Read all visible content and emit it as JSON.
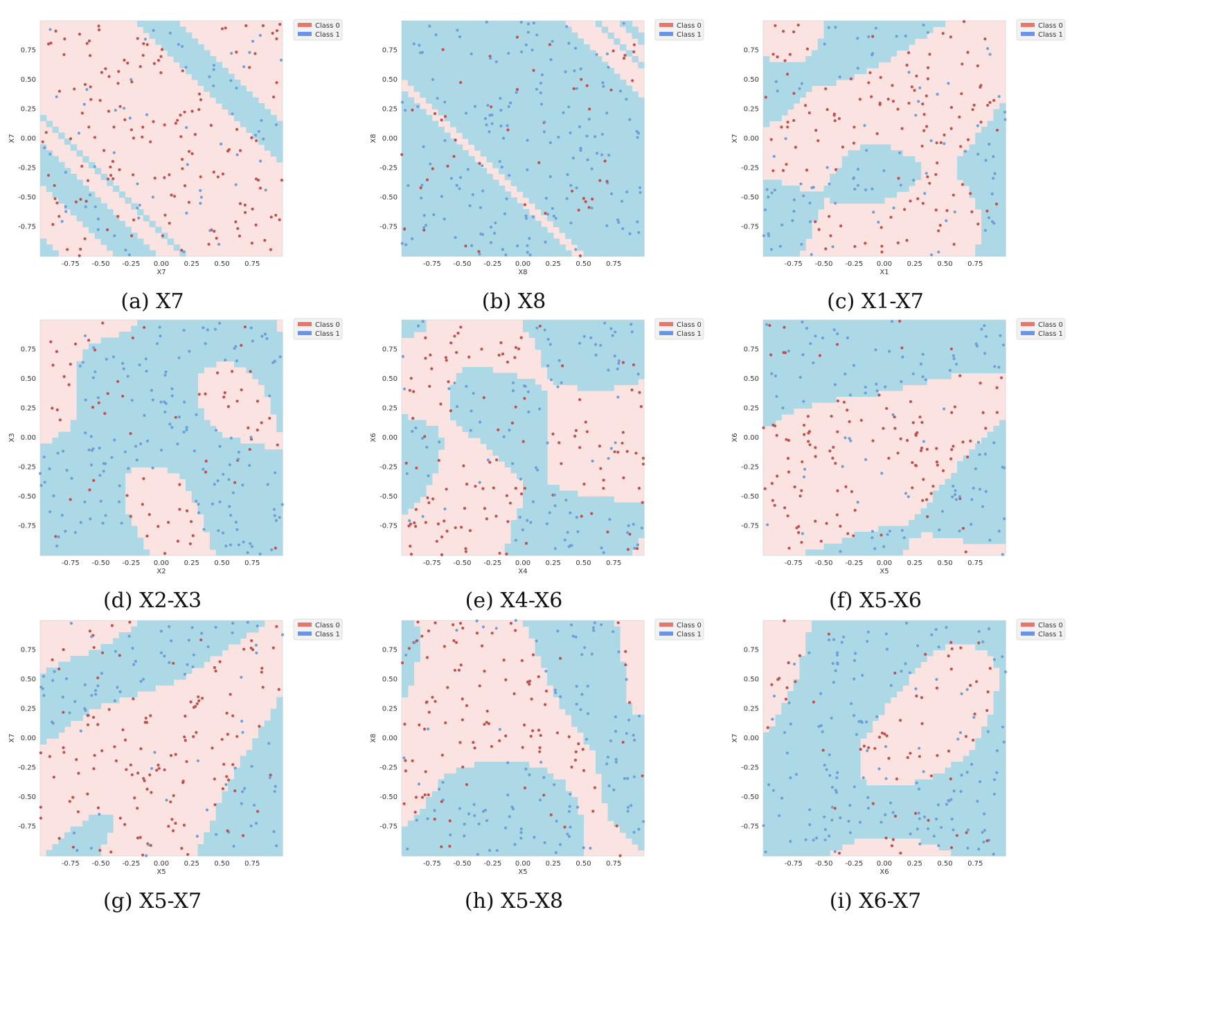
{
  "chart_data": [
    {
      "type": "scatter",
      "panel_id": "a",
      "caption": "(a) X7",
      "xlabel": "X7",
      "ylabel": "X7",
      "xlim": [
        -1,
        1
      ],
      "ylim": [
        -1,
        1
      ],
      "xticks": [
        "-0.75",
        "-0.50",
        "-0.25",
        "0.00",
        "0.25",
        "0.50",
        "0.75"
      ],
      "yticks": [
        "0.75",
        "0.50",
        "0.25",
        "0.00",
        "-0.25",
        "-0.50",
        "-0.75"
      ],
      "legend": [
        "Class 0",
        "Class 1"
      ],
      "legend_position": "upper-right-outside",
      "background_pattern": "diagonal bands (x+y)",
      "seed": 11
    },
    {
      "type": "scatter",
      "panel_id": "b",
      "caption": "(b) X8",
      "xlabel": "X8",
      "ylabel": "X8",
      "xlim": [
        -1,
        1
      ],
      "ylim": [
        -1,
        1
      ],
      "xticks": [
        "-0.75",
        "-0.50",
        "-0.25",
        "0.00",
        "0.25",
        "0.50",
        "0.75"
      ],
      "yticks": [
        "0.75",
        "0.50",
        "0.25",
        "0.00",
        "-0.25",
        "-0.50",
        "-0.75"
      ],
      "legend": [
        "Class 0",
        "Class 1"
      ],
      "legend_position": "upper-right-outside",
      "background_pattern": "diagonal bands (x+y)",
      "seed": 23
    },
    {
      "type": "scatter",
      "panel_id": "c",
      "caption": "(c) X1-X7",
      "xlabel": "X1",
      "ylabel": "X7",
      "xlim": [
        -1,
        1
      ],
      "ylim": [
        -1,
        1
      ],
      "xticks": [
        "-0.75",
        "-0.50",
        "-0.25",
        "0.00",
        "0.25",
        "0.50",
        "0.75"
      ],
      "yticks": [
        "0.75",
        "0.50",
        "0.25",
        "0.00",
        "-0.25",
        "-0.50",
        "-0.75"
      ],
      "legend": [
        "Class 0",
        "Class 1"
      ],
      "legend_position": "upper-right-outside",
      "background_pattern": "irregular regions",
      "seed": 37
    },
    {
      "type": "scatter",
      "panel_id": "d",
      "caption": "(d) X2-X3",
      "xlabel": "X2",
      "ylabel": "X3",
      "xlim": [
        -1,
        1
      ],
      "ylim": [
        -1,
        1
      ],
      "xticks": [
        "-0.75",
        "-0.50",
        "-0.25",
        "0.00",
        "0.25",
        "0.50",
        "0.75"
      ],
      "yticks": [
        "0.75",
        "0.50",
        "0.25",
        "0.00",
        "-0.25",
        "-0.50",
        "-0.75"
      ],
      "legend": [
        "Class 0",
        "Class 1"
      ],
      "legend_position": "upper-right-outside",
      "background_pattern": "irregular regions",
      "seed": 41
    },
    {
      "type": "scatter",
      "panel_id": "e",
      "caption": "(e) X4-X6",
      "xlabel": "X4",
      "ylabel": "X6",
      "xlim": [
        -1,
        1
      ],
      "ylim": [
        -1,
        1
      ],
      "xticks": [
        "-0.75",
        "-0.50",
        "-0.25",
        "0.00",
        "0.25",
        "0.50",
        "0.75"
      ],
      "yticks": [
        "0.75",
        "0.50",
        "0.25",
        "0.00",
        "-0.25",
        "-0.50",
        "-0.75"
      ],
      "legend": [
        "Class 0",
        "Class 1"
      ],
      "legend_position": "upper-right-outside",
      "background_pattern": "irregular regions",
      "seed": 53
    },
    {
      "type": "scatter",
      "panel_id": "f",
      "caption": "(f) X5-X6",
      "xlabel": "X5",
      "ylabel": "X6",
      "xlim": [
        -1,
        1
      ],
      "ylim": [
        -1,
        1
      ],
      "xticks": [
        "-0.75",
        "-0.50",
        "-0.25",
        "0.00",
        "0.25",
        "0.50",
        "0.75"
      ],
      "yticks": [
        "0.75",
        "0.50",
        "0.25",
        "0.00",
        "-0.25",
        "-0.50",
        "-0.75"
      ],
      "legend": [
        "Class 0",
        "Class 1"
      ],
      "legend_position": "upper-right-outside",
      "background_pattern": "irregular regions",
      "seed": 67
    },
    {
      "type": "scatter",
      "panel_id": "g",
      "caption": "(g) X5-X7",
      "xlabel": "X5",
      "ylabel": "X7",
      "xlim": [
        -1,
        1
      ],
      "ylim": [
        -1,
        1
      ],
      "xticks": [
        "-0.75",
        "-0.50",
        "-0.25",
        "0.00",
        "0.25",
        "0.50",
        "0.75"
      ],
      "yticks": [
        "0.75",
        "0.50",
        "0.25",
        "0.00",
        "-0.25",
        "-0.50",
        "-0.75"
      ],
      "legend": [
        "Class 0",
        "Class 1"
      ],
      "legend_position": "upper-right-outside",
      "background_pattern": "irregular regions",
      "seed": 71
    },
    {
      "type": "scatter",
      "panel_id": "h",
      "caption": "(h) X5-X8",
      "xlabel": "X5",
      "ylabel": "X8",
      "xlim": [
        -1,
        1
      ],
      "ylim": [
        -1,
        1
      ],
      "xticks": [
        "-0.75",
        "-0.50",
        "-0.25",
        "0.00",
        "0.25",
        "0.50",
        "0.75"
      ],
      "yticks": [
        "0.75",
        "0.50",
        "0.25",
        "0.00",
        "-0.25",
        "-0.50",
        "-0.75"
      ],
      "legend": [
        "Class 0",
        "Class 1"
      ],
      "legend_position": "upper-right-outside",
      "background_pattern": "irregular regions",
      "seed": 83
    },
    {
      "type": "scatter",
      "panel_id": "i",
      "caption": "(i) X6-X7",
      "xlabel": "X6",
      "ylabel": "X7",
      "xlim": [
        -1,
        1
      ],
      "ylim": [
        -1,
        1
      ],
      "xticks": [
        "-0.75",
        "-0.50",
        "-0.25",
        "0.00",
        "0.25",
        "0.50",
        "0.75"
      ],
      "yticks": [
        "0.75",
        "0.50",
        "0.25",
        "0.00",
        "-0.25",
        "-0.50",
        "-0.75"
      ],
      "legend": [
        "Class 0",
        "Class 1"
      ],
      "legend_position": "upper-right-outside",
      "background_pattern": "irregular regions",
      "seed": 97
    }
  ],
  "colors": {
    "class0_region": "#fae3e1",
    "class1_region": "#add8e6",
    "class0_point": "#c0504d",
    "class1_point": "#6f9fd8",
    "legend_class0": "#e8776b",
    "legend_class1": "#6b93e6",
    "boundary": "#222222"
  }
}
